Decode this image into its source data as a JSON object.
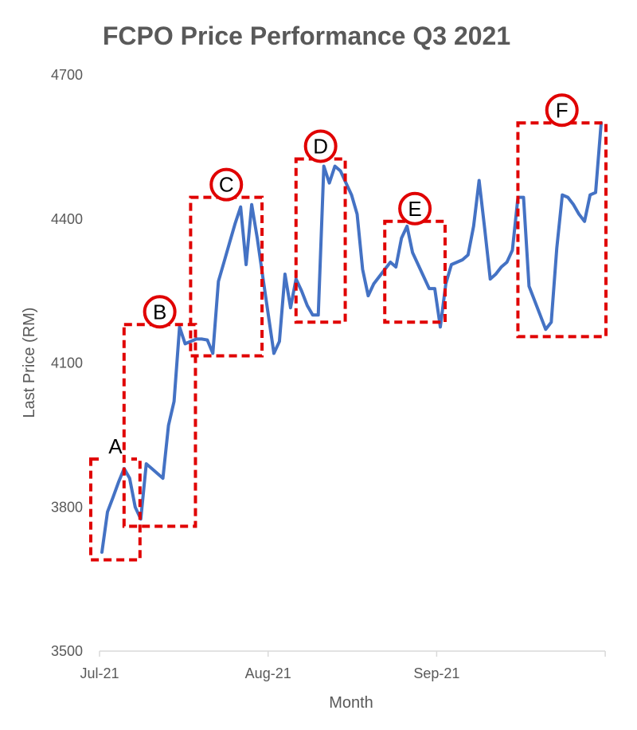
{
  "chart_data": {
    "type": "line",
    "title": "FCPO Price Performance Q3 2021",
    "xlabel": "Month",
    "ylabel": "Last Price (RM)",
    "ylim": [
      3500,
      4700
    ],
    "yticks": [
      3500,
      3800,
      4100,
      4400,
      4700
    ],
    "xticks": [
      "Jul-21",
      "Aug-21",
      "Sep-21"
    ],
    "grid": false,
    "line_color": "#4472C4",
    "annotation_color": "#E00000",
    "series": [
      {
        "values": [
          3706,
          3790,
          3820,
          3852,
          3880,
          3860,
          3800,
          3775,
          3890,
          3880,
          3870,
          3860,
          3970,
          4020,
          4175,
          4140,
          4145,
          4150,
          4150,
          4148,
          4120,
          4270,
          4310,
          4350,
          4390,
          4425,
          4305,
          4430,
          4360,
          4280,
          4200,
          4120,
          4145,
          4285,
          4215,
          4275,
          4250,
          4220,
          4200,
          4200,
          4510,
          4475,
          4510,
          4500,
          4475,
          4450,
          4410,
          4295,
          4240,
          4265,
          4280,
          4295,
          4310,
          4300,
          4360,
          4385,
          4330,
          4305,
          4280,
          4255,
          4255,
          4175,
          4265,
          4305,
          4310,
          4315,
          4325,
          4385,
          4480,
          4380,
          4275,
          4285,
          4300,
          4310,
          4335,
          4445,
          4445,
          4260,
          4230,
          4200,
          4170,
          4185,
          4340,
          4450,
          4445,
          4430,
          4410,
          4395,
          4450,
          4455,
          4600
        ]
      }
    ],
    "annotations": [
      {
        "label": "A",
        "circled": false,
        "start": 0,
        "end": 6,
        "y_low": 3690,
        "y_high": 3900
      },
      {
        "label": "B",
        "circled": true,
        "start": 6,
        "end": 16,
        "y_low": 3760,
        "y_high": 4180
      },
      {
        "label": "C",
        "circled": true,
        "start": 18,
        "end": 28,
        "y_low": 4115,
        "y_high": 4445
      },
      {
        "label": "D",
        "circled": true,
        "start": 37,
        "end": 43,
        "y_low": 4185,
        "y_high": 4525
      },
      {
        "label": "E",
        "circled": true,
        "start": 53,
        "end": 61,
        "y_low": 4185,
        "y_high": 4395
      },
      {
        "label": "F",
        "circled": true,
        "start": 77,
        "end": 90,
        "y_low": 4155,
        "y_high": 4600
      }
    ]
  }
}
